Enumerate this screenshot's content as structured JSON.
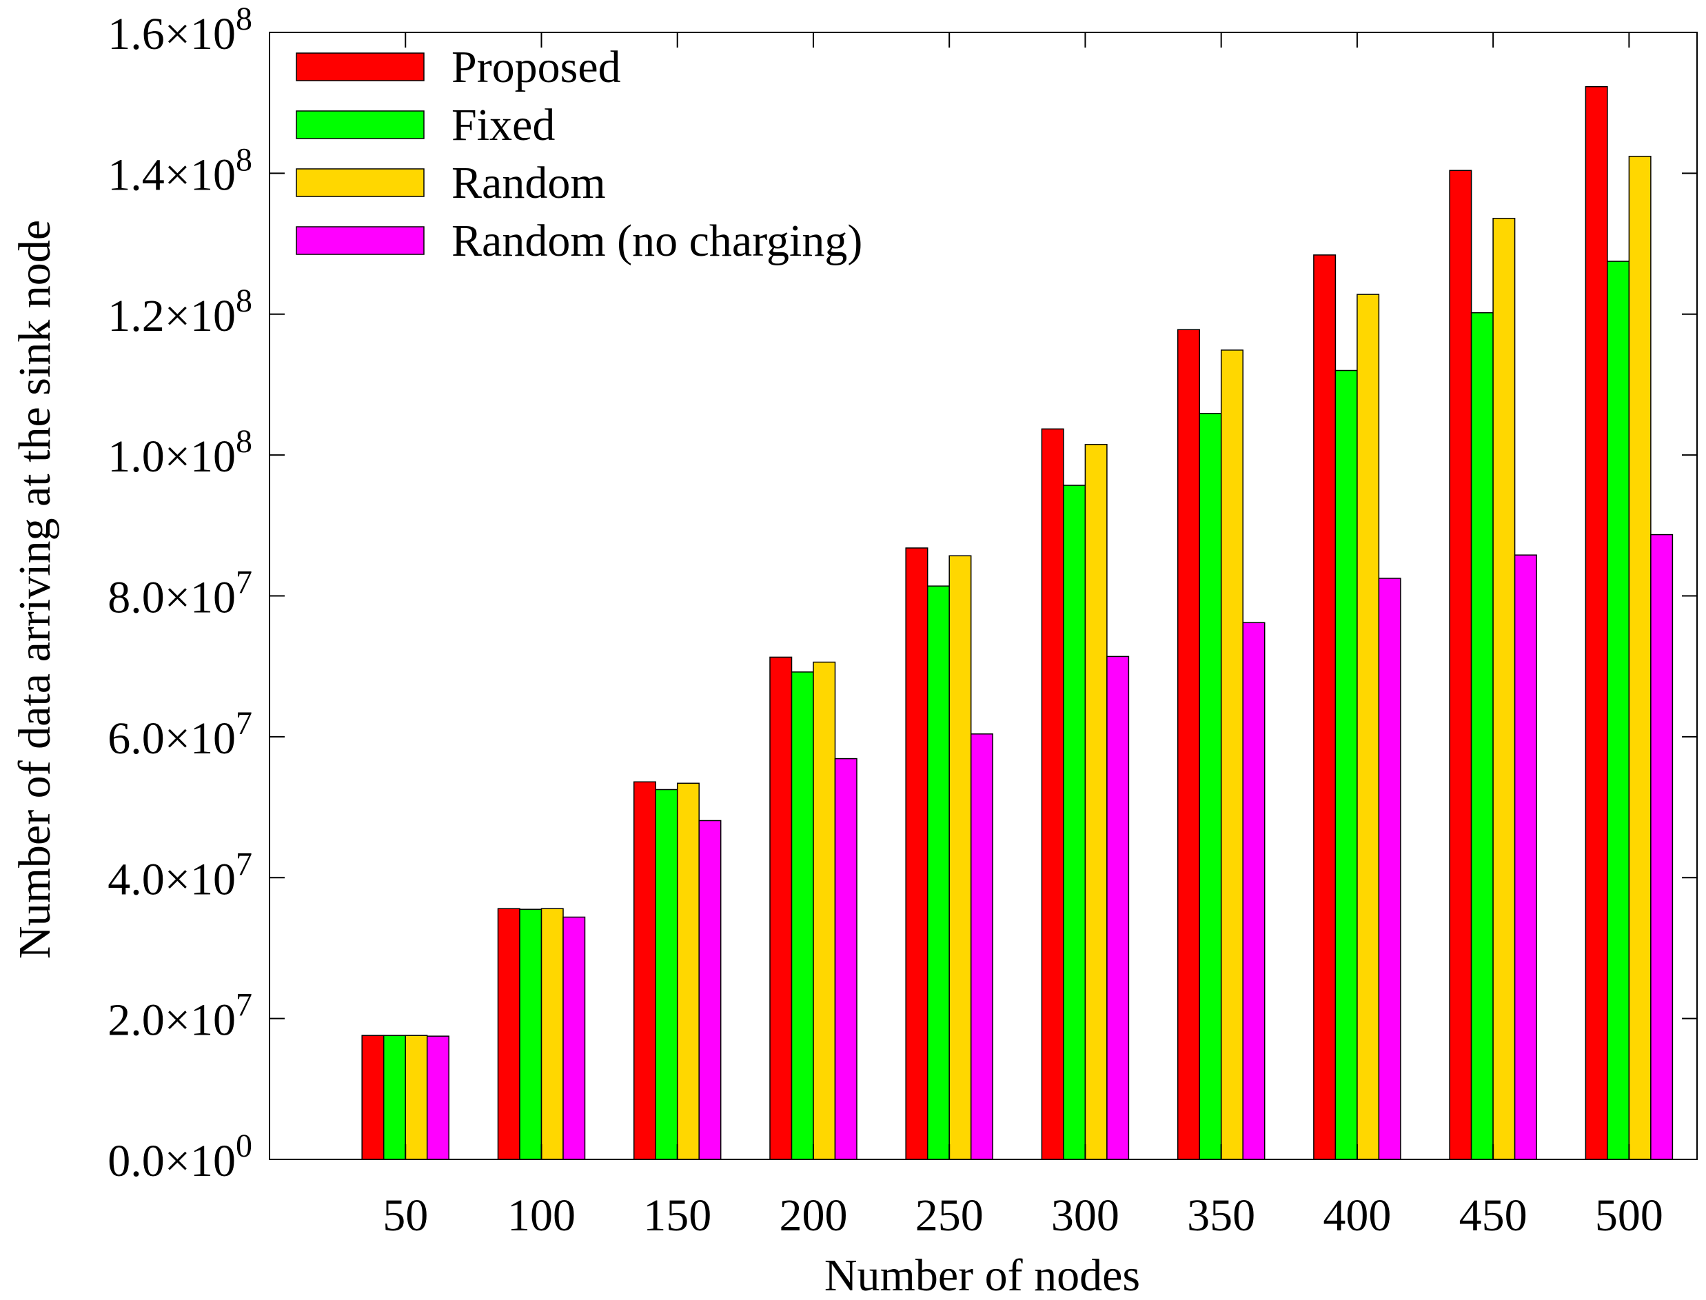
{
  "chart_data": {
    "type": "bar",
    "title": "",
    "xlabel": "Number of nodes",
    "ylabel": "Number of data arriving at the sink node",
    "categories": [
      "50",
      "100",
      "150",
      "200",
      "250",
      "300",
      "350",
      "400",
      "450",
      "500"
    ],
    "ylim": [
      0,
      160000000
    ],
    "yticks": [
      {
        "value": 0,
        "mantissa": "0.0×10",
        "exponent": "0"
      },
      {
        "value": 20000000,
        "mantissa": "2.0×10",
        "exponent": "7"
      },
      {
        "value": 40000000,
        "mantissa": "4.0×10",
        "exponent": "7"
      },
      {
        "value": 60000000,
        "mantissa": "6.0×10",
        "exponent": "7"
      },
      {
        "value": 80000000,
        "mantissa": "8.0×10",
        "exponent": "7"
      },
      {
        "value": 100000000,
        "mantissa": "1.0×10",
        "exponent": "8"
      },
      {
        "value": 120000000,
        "mantissa": "1.2×10",
        "exponent": "8"
      },
      {
        "value": 140000000,
        "mantissa": "1.4×10",
        "exponent": "8"
      },
      {
        "value": 160000000,
        "mantissa": "1.6×10",
        "exponent": "8"
      }
    ],
    "legend_position": "top-left",
    "grid": false,
    "series": [
      {
        "name": "Proposed",
        "color": "#ff0000",
        "values": [
          17600000,
          35600000,
          53600000,
          71300000,
          86800000,
          103700000,
          117800000,
          128400000,
          140400000,
          152300000
        ]
      },
      {
        "name": "Fixed",
        "color": "#00ff00",
        "values": [
          17600000,
          35500000,
          52500000,
          69200000,
          81400000,
          95700000,
          105900000,
          112000000,
          120200000,
          127500000
        ]
      },
      {
        "name": "Random",
        "color": "#ffd700",
        "values": [
          17600000,
          35600000,
          53400000,
          70600000,
          85700000,
          101500000,
          114900000,
          122800000,
          133600000,
          142400000
        ]
      },
      {
        "name": "Random (no charging)",
        "color": "#ff00ff",
        "values": [
          17500000,
          34400000,
          48100000,
          56900000,
          60400000,
          71400000,
          76200000,
          82500000,
          85800000,
          88700000
        ]
      }
    ]
  }
}
